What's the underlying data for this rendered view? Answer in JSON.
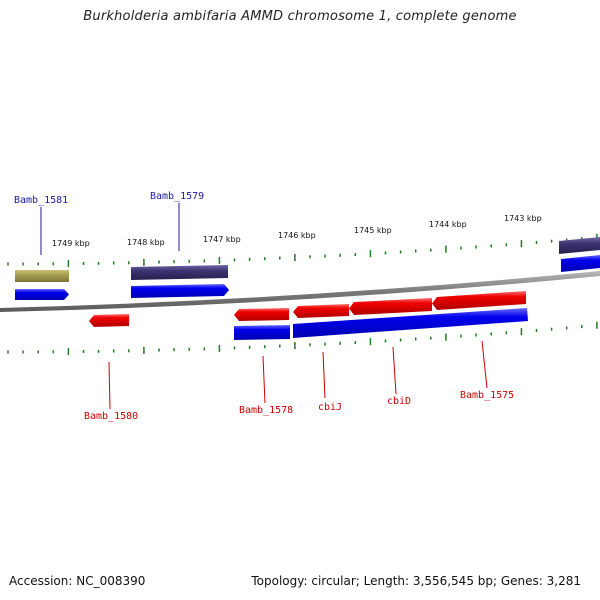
{
  "title": "Burkholderia ambifaria AMMD chromosome 1, complete genome",
  "footer": {
    "accession": "Accession: NC_008390",
    "summary": "Topology: circular; Length: 3,556,545 bp; Genes: 3,281"
  },
  "colors": {
    "forward_gene": "#0000ee",
    "reverse_gene": "#ee0000",
    "forward_cds": "#3a3370",
    "pseudo": "#a59d50",
    "label_forward": "#1a1aa0",
    "label_reverse": "#cc0000",
    "tick": "#1e7d1e",
    "backbone": "#8a8a8a"
  },
  "ticks": [
    {
      "label": "1749 kbp"
    },
    {
      "label": "1748 kbp"
    },
    {
      "label": "1747 kbp"
    },
    {
      "label": "1746 kbp"
    },
    {
      "label": "1745 kbp"
    },
    {
      "label": "1744 kbp"
    },
    {
      "label": "1743 kbp"
    }
  ],
  "genes": [
    {
      "name": "Bamb_1581",
      "strand": "forward"
    },
    {
      "name": "Bamb_1579",
      "strand": "forward"
    },
    {
      "name": "Bamb_1580",
      "strand": "reverse"
    },
    {
      "name": "Bamb_1578",
      "strand": "reverse"
    },
    {
      "name": "cbiJ",
      "strand": "reverse"
    },
    {
      "name": "cbiD",
      "strand": "reverse"
    },
    {
      "name": "Bamb_1575",
      "strand": "reverse"
    }
  ]
}
